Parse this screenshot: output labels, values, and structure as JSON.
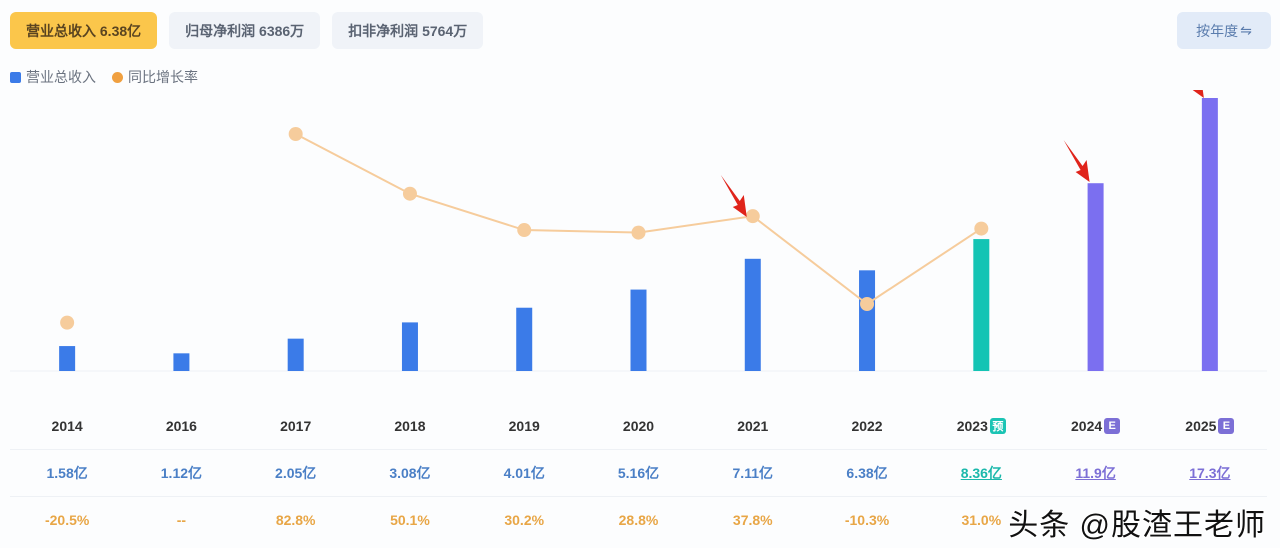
{
  "tabs": [
    {
      "label": "营业总收入 6.38亿",
      "active": true
    },
    {
      "label": "归母净利润 6386万",
      "active": false
    },
    {
      "label": "扣非净利润 5764万",
      "active": false
    }
  ],
  "toggle": {
    "label": "按年度",
    "icon": "⇋"
  },
  "legend": [
    {
      "label": "营业总收入",
      "color": "#3b7be8",
      "shape": "square"
    },
    {
      "label": "同比增长率",
      "color": "#f0a040",
      "shape": "circle"
    }
  ],
  "colors": {
    "actual_bar": "#3b7be8",
    "predicted_bar": "#14c4b4",
    "estimate_bar": "#7b6ff0",
    "growth_line": "#f6cc9c",
    "arrow": "#e0241b"
  },
  "badges": {
    "pred": "预",
    "est": "E"
  },
  "chart_data": {
    "type": "bar",
    "title": "",
    "categories": [
      "2014",
      "2016",
      "2017",
      "2018",
      "2019",
      "2020",
      "2021",
      "2022",
      "2023",
      "2024",
      "2025"
    ],
    "series": [
      {
        "name": "营业总收入",
        "unit": "亿",
        "type": "bar",
        "values": [
          1.58,
          1.12,
          2.05,
          3.08,
          4.01,
          5.16,
          7.11,
          6.38,
          8.36,
          11.9,
          17.3
        ]
      },
      {
        "name": "同比增长率",
        "unit": "%",
        "type": "line",
        "values": [
          -20.5,
          null,
          82.8,
          50.1,
          30.2,
          28.8,
          37.8,
          -10.3,
          31.0,
          null,
          null
        ]
      }
    ],
    "bar_kind": [
      "actual",
      "actual",
      "actual",
      "actual",
      "actual",
      "actual",
      "actual",
      "actual",
      "pred",
      "est",
      "est"
    ],
    "annotations": [
      "red arrows pointing at 2021, 2024 and 2025 bars"
    ],
    "grid": false
  },
  "table": {
    "years": [
      "2014",
      "2016",
      "2017",
      "2018",
      "2019",
      "2020",
      "2021",
      "2022",
      "2023",
      "2024",
      "2025"
    ],
    "year_badges": [
      null,
      null,
      null,
      null,
      null,
      null,
      null,
      null,
      "pred",
      "est",
      "est"
    ],
    "revenue": [
      "1.58亿",
      "1.12亿",
      "2.05亿",
      "3.08亿",
      "4.01亿",
      "5.16亿",
      "7.11亿",
      "6.38亿",
      "8.36亿",
      "11.9亿",
      "17.3亿"
    ],
    "growth": [
      "-20.5%",
      "--",
      "82.8%",
      "50.1%",
      "30.2%",
      "28.8%",
      "37.8%",
      "-10.3%",
      "31.0%",
      null,
      null
    ]
  },
  "watermark": "头条 @股渣王老师"
}
